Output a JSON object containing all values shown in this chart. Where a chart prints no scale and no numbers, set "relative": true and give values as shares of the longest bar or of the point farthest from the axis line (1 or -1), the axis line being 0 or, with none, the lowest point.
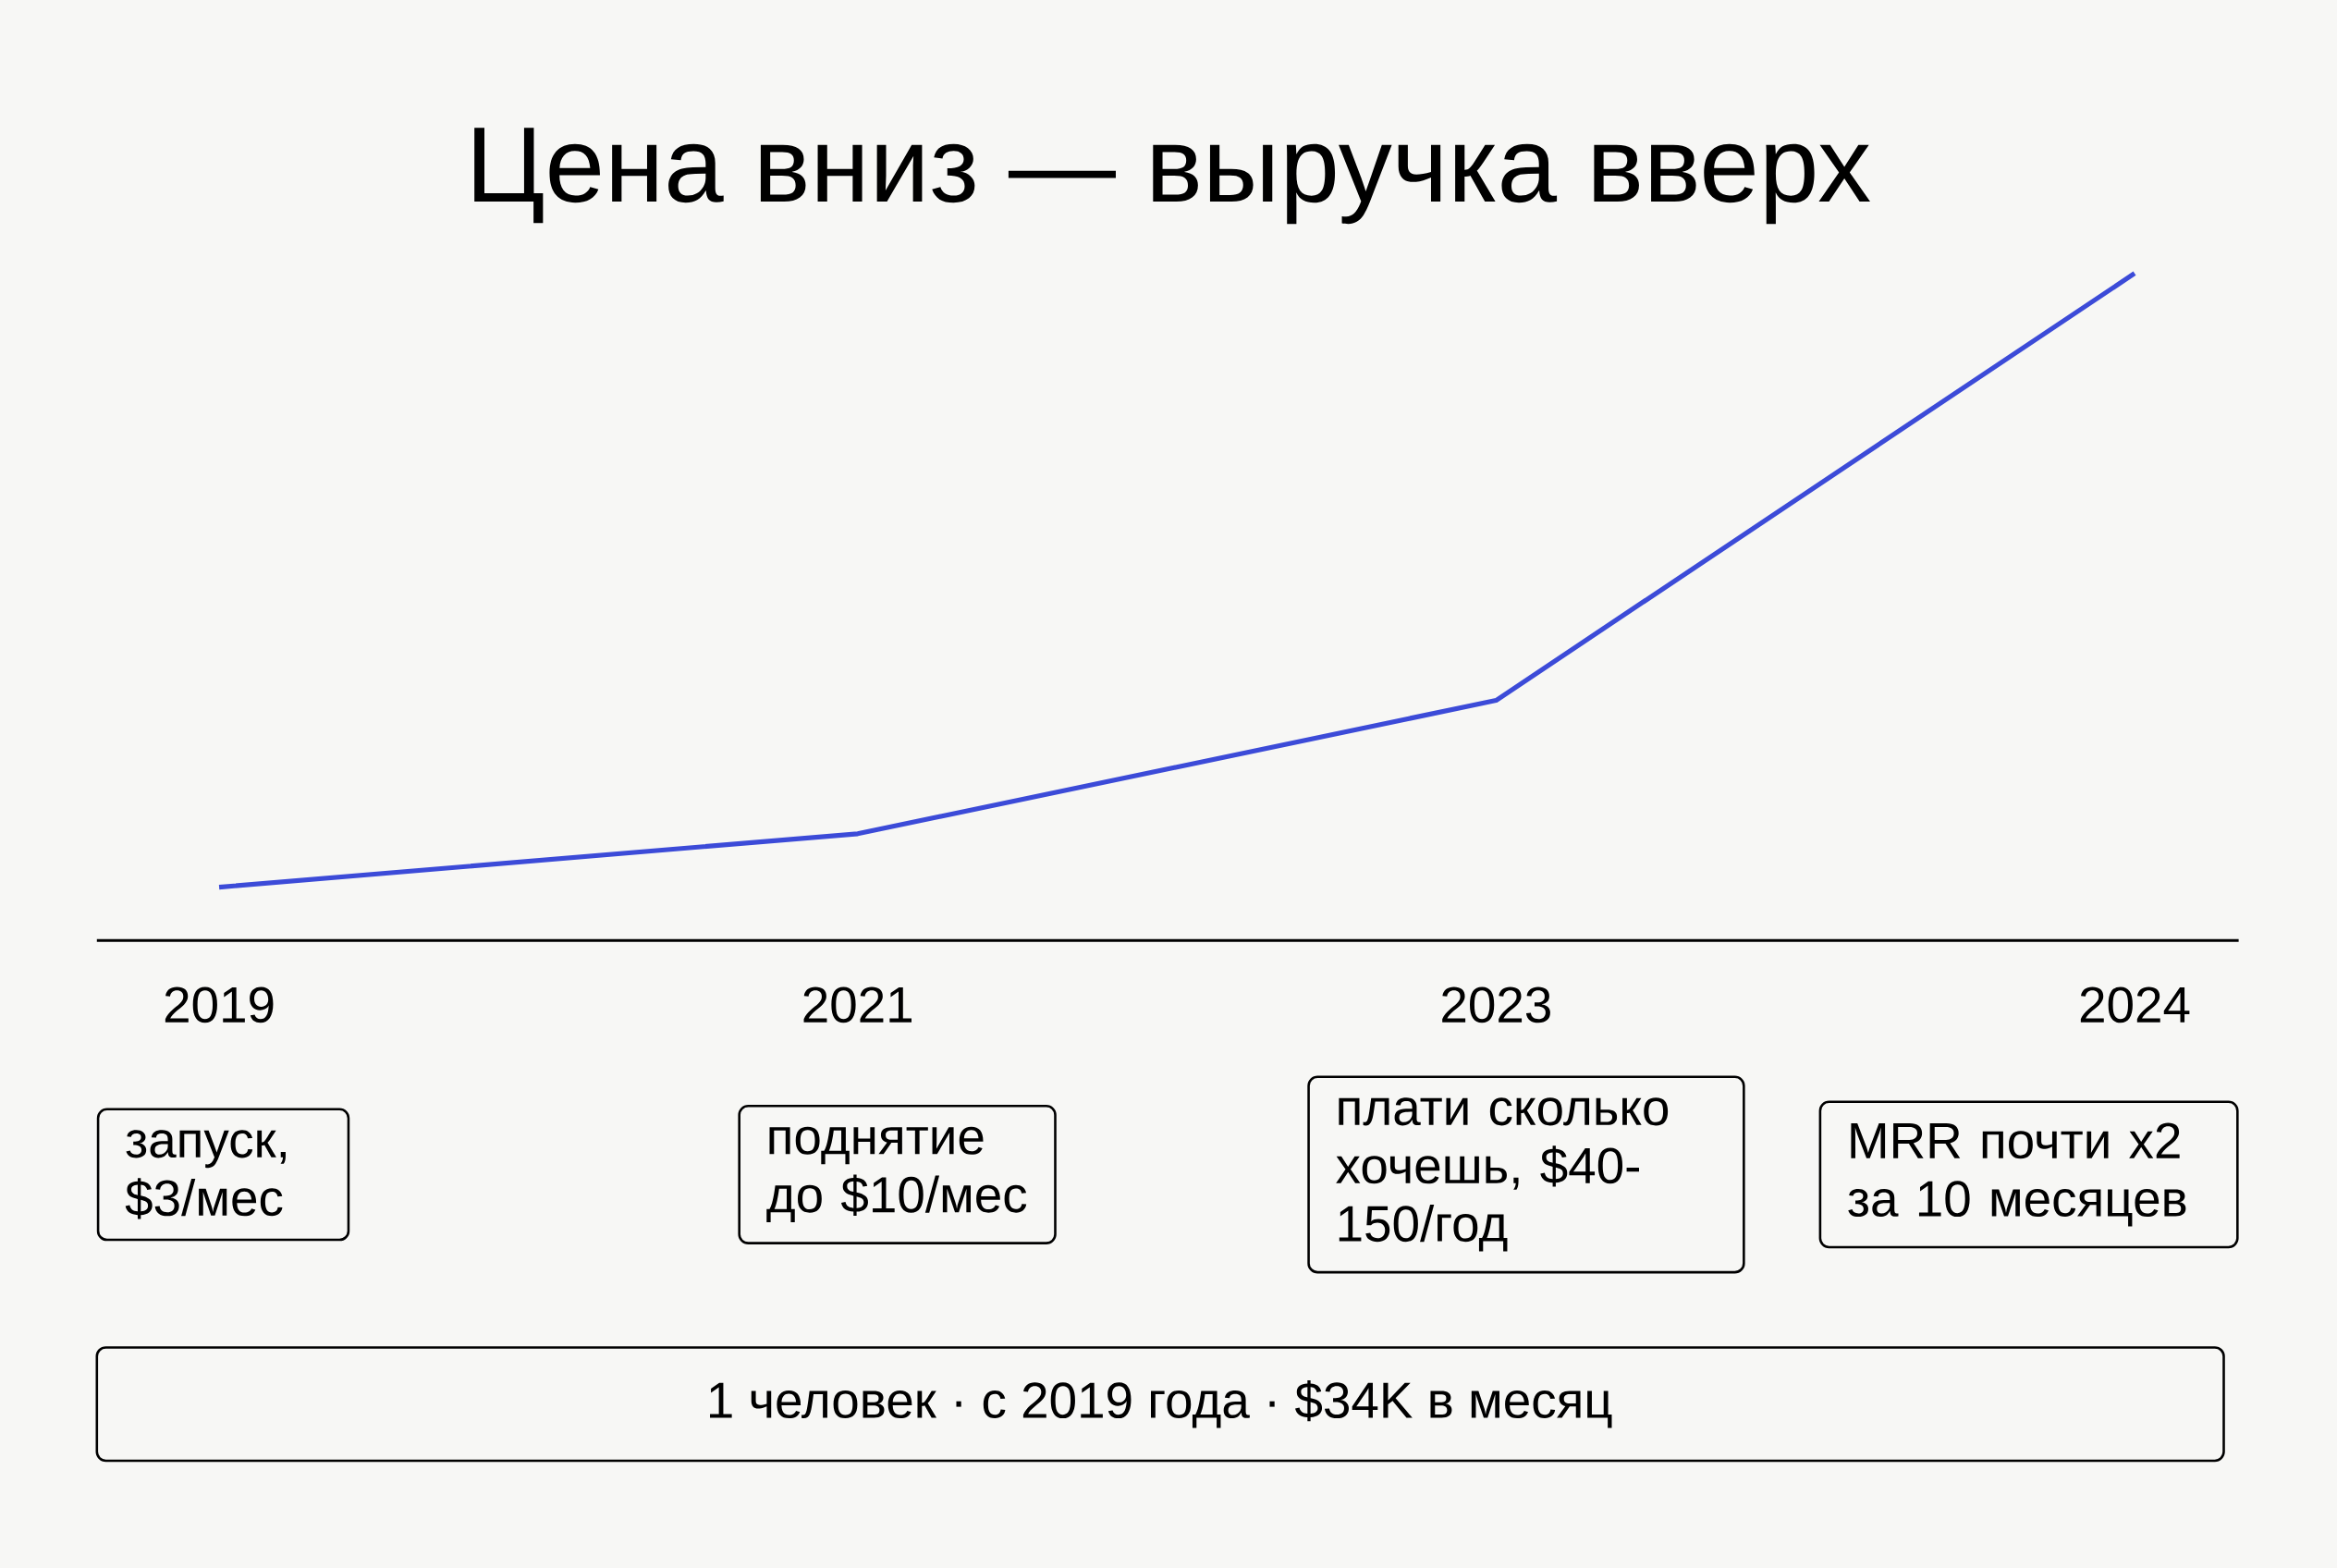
{
  "chart_data": {
    "type": "line",
    "title": "Цена вниз — выручка вверх",
    "categories": [
      "2019",
      "2021",
      "2023",
      "2024"
    ],
    "values": [
      0.08,
      0.16,
      0.36,
      1
    ],
    "relative": true,
    "color": "#3c4bd8",
    "annotations": [
      "запуск, $3/мес",
      "поднятие до $10/мес",
      "плати сколько хочешь, $40-150/год",
      "MRR почти x2 за 10 месяцев",
      "1 человек · с 2019 года · $34K в месяц"
    ]
  }
}
